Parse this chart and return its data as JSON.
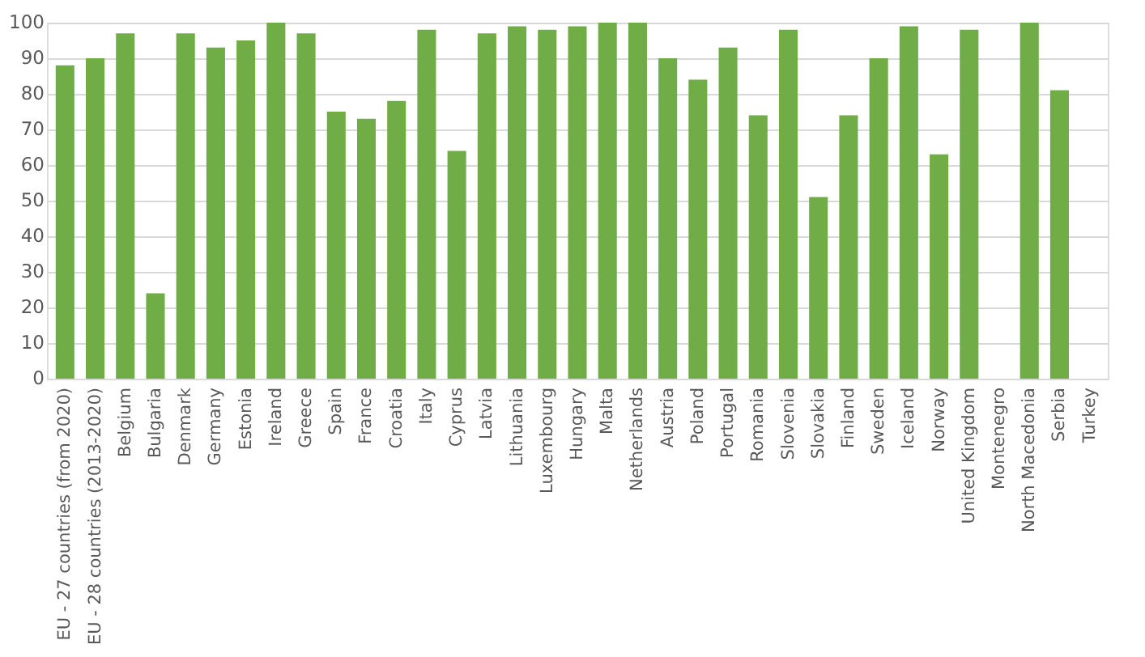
{
  "chart_data": {
    "type": "bar",
    "categories": [
      "EU - 27 countries (from 2020)",
      "EU - 28 countries (2013-2020)",
      "Belgium",
      "Bulgaria",
      "Denmark",
      "Germany",
      "Estonia",
      "Ireland",
      "Greece",
      "Spain",
      "France",
      "Croatia",
      "Italy",
      "Cyprus",
      "Latvia",
      "Lithuania",
      "Luxembourg",
      "Hungary",
      "Malta",
      "Netherlands",
      "Austria",
      "Poland",
      "Portugal",
      "Romania",
      "Slovenia",
      "Slovakia",
      "Finland",
      "Sweden",
      "Iceland",
      "Norway",
      "United Kingdom",
      "Montenegro",
      "North Macedonia",
      "Serbia",
      "Turkey"
    ],
    "values": [
      88,
      90,
      97,
      24,
      97,
      93,
      95,
      100,
      97,
      75,
      73,
      78,
      98,
      64,
      97,
      99,
      98,
      99,
      100,
      100,
      90,
      84,
      93,
      74,
      98,
      51,
      74,
      90,
      99,
      63,
      98,
      null,
      100,
      81,
      null
    ],
    "color": "#70ad47",
    "ylim": [
      0,
      100
    ],
    "yticks": [
      0,
      10,
      20,
      30,
      40,
      50,
      60,
      70,
      80,
      90,
      100
    ],
    "grid": "y"
  }
}
